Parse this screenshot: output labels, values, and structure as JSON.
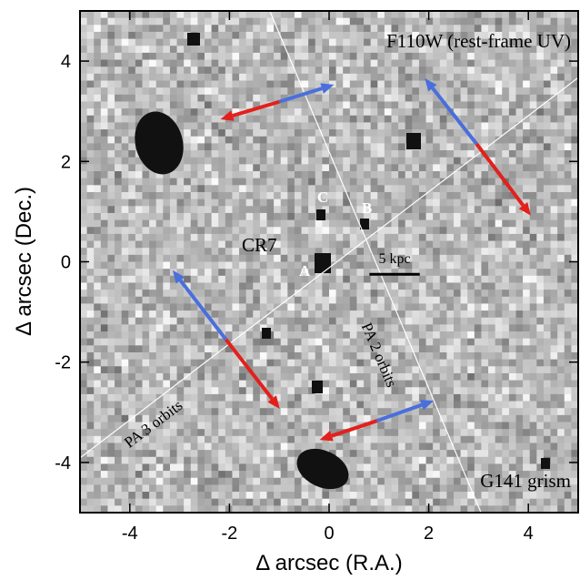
{
  "chart_data": {
    "type": "image",
    "xlabel": "Δ arcsec (R.A.)",
    "ylabel": "Δ arcsec (Dec.)",
    "xlim": [
      -5,
      5
    ],
    "ylim": [
      -5,
      5
    ],
    "xticks": [
      -4,
      -2,
      0,
      2,
      4
    ],
    "yticks": [
      -4,
      -2,
      0,
      2,
      4
    ],
    "annotations": {
      "filter": "F110W (rest-frame UV)",
      "grism": "G141 grism",
      "source": "CR7",
      "a": "A",
      "b": "B",
      "c": "C",
      "scale": "5 kpc"
    },
    "scale_bar": {
      "x": [
        0.81,
        1.82
      ],
      "y": -0.25
    },
    "pa_lines": [
      {
        "label": "PA 2 orbits",
        "x": [
          -1.19,
          3.05
        ],
        "y": [
          5,
          -5
        ]
      },
      {
        "label": "PA 3 orbits",
        "x": [
          -5,
          5
        ],
        "y": [
          -3.91,
          3.67
        ]
      }
    ],
    "arrows": [
      {
        "center": [
          -1.0,
          3.19
        ],
        "blue_head": [
          0.1,
          3.53
        ],
        "red_head": [
          -2.18,
          2.84
        ]
      },
      {
        "center": [
          2.96,
          2.35
        ],
        "blue_head": [
          1.92,
          3.66
        ],
        "red_head": [
          4.05,
          0.92
        ]
      },
      {
        "center": [
          -2.07,
          -1.55
        ],
        "blue_head": [
          -3.14,
          -0.17
        ],
        "red_head": [
          -0.99,
          -2.93
        ]
      },
      {
        "center": [
          0.96,
          -3.17
        ],
        "blue_head": [
          2.1,
          -2.77
        ],
        "red_head": [
          -0.19,
          -3.55
        ]
      }
    ],
    "colors": {
      "blue": "#4a6fdc",
      "red": "#e3201c"
    }
  }
}
